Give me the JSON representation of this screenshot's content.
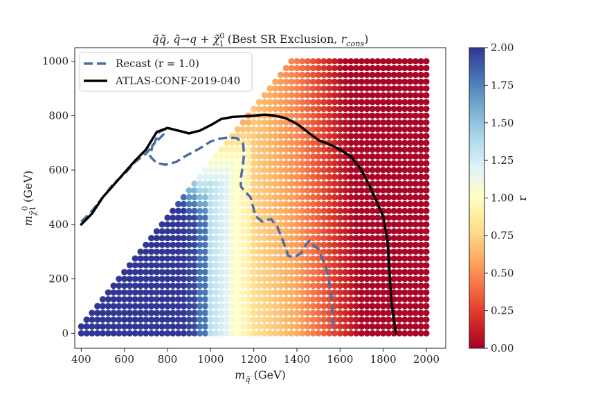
{
  "chart_data": {
    "type": "scatter",
    "title_parts": [
      {
        "t": "q̃q̃, q̃→q + χ̃",
        "style": "i"
      },
      {
        "t": "0",
        "style": "sup"
      },
      {
        "t": "1",
        "style": "sub"
      },
      {
        "t": " (Best SR Exclusion, ",
        "style": "n"
      },
      {
        "t": "r",
        "style": "i"
      },
      {
        "t": "cons",
        "style": "sub-i"
      },
      {
        "t": ")",
        "style": "n"
      }
    ],
    "xlabel_parts": [
      {
        "t": "m",
        "style": "i"
      },
      {
        "t": "q̃",
        "style": "sub-i"
      },
      {
        "t": " (GeV)",
        "style": "n"
      }
    ],
    "ylabel_parts": [
      {
        "t": "m",
        "style": "i"
      },
      {
        "t": "χ̃",
        "style": "sub-i"
      },
      {
        "t": "0",
        "style": "sup-s"
      },
      {
        "t": "1",
        "style": "sub-s"
      },
      {
        "t": " (GeV)",
        "style": "n"
      }
    ],
    "xlim": [
      370,
      2090
    ],
    "ylim": [
      -55,
      1050
    ],
    "x_ticks": [
      400,
      600,
      800,
      1000,
      1200,
      1400,
      1600,
      1800,
      2000
    ],
    "y_ticks": [
      0,
      200,
      400,
      600,
      800,
      1000
    ],
    "grid": {
      "x_min": 400,
      "x_max": 2000,
      "x_step": 25,
      "y_min": 0,
      "y_max": 1000,
      "y_step": 25
    },
    "colorbar": {
      "label": "r",
      "min": 0.0,
      "max": 2.0,
      "ticks": [
        "0.00",
        "0.25",
        "0.50",
        "0.75",
        "1.00",
        "1.25",
        "1.50",
        "1.75",
        "2.00"
      ],
      "colormap": [
        "#a50026",
        "#d73027",
        "#f46d43",
        "#fdae61",
        "#fee090",
        "#ffffbf",
        "#e0f3f8",
        "#abd9e9",
        "#74add1",
        "#4575b4",
        "#313695"
      ]
    },
    "legend": {
      "position": "upper-left",
      "entries": [
        {
          "label": "Recast (r = 1.0)",
          "style": "dashed",
          "color": "#4a6fa5"
        },
        {
          "label": "ATLAS-CONF-2019-040",
          "style": "solid",
          "color": "#000000"
        }
      ]
    },
    "series": [
      {
        "name": "Recast (r = 1.0)",
        "color": "#4a6fa5",
        "dash": true,
        "points": [
          [
            400,
            410
          ],
          [
            450,
            450
          ],
          [
            500,
            500
          ],
          [
            550,
            550
          ],
          [
            600,
            585
          ],
          [
            650,
            630
          ],
          [
            700,
            660
          ],
          [
            740,
            700
          ],
          [
            760,
            740
          ],
          [
            790,
            750
          ],
          [
            780,
            730
          ],
          [
            730,
            690
          ],
          [
            720,
            650
          ],
          [
            750,
            625
          ],
          [
            790,
            620
          ],
          [
            840,
            630
          ],
          [
            880,
            650
          ],
          [
            950,
            680
          ],
          [
            1000,
            705
          ],
          [
            1040,
            715
          ],
          [
            1080,
            720
          ],
          [
            1120,
            718
          ],
          [
            1150,
            700
          ],
          [
            1155,
            660
          ],
          [
            1150,
            620
          ],
          [
            1140,
            570
          ],
          [
            1140,
            540
          ],
          [
            1160,
            520
          ],
          [
            1185,
            500
          ],
          [
            1200,
            455
          ],
          [
            1210,
            430
          ],
          [
            1240,
            410
          ],
          [
            1280,
            420
          ],
          [
            1310,
            390
          ],
          [
            1340,
            330
          ],
          [
            1360,
            285
          ],
          [
            1380,
            280
          ],
          [
            1400,
            285
          ],
          [
            1420,
            295
          ],
          [
            1445,
            330
          ],
          [
            1460,
            340
          ],
          [
            1480,
            320
          ],
          [
            1500,
            310
          ],
          [
            1520,
            270
          ],
          [
            1540,
            230
          ],
          [
            1560,
            140
          ],
          [
            1565,
            60
          ],
          [
            1565,
            0
          ]
        ]
      },
      {
        "name": "ATLAS-CONF-2019-040",
        "color": "#000000",
        "dash": false,
        "points": [
          [
            400,
            400
          ],
          [
            450,
            440
          ],
          [
            500,
            500
          ],
          [
            550,
            545
          ],
          [
            600,
            590
          ],
          [
            650,
            635
          ],
          [
            700,
            675
          ],
          [
            750,
            740
          ],
          [
            800,
            755
          ],
          [
            850,
            745
          ],
          [
            900,
            735
          ],
          [
            950,
            745
          ],
          [
            1000,
            765
          ],
          [
            1050,
            788
          ],
          [
            1100,
            795
          ],
          [
            1150,
            798
          ],
          [
            1200,
            800
          ],
          [
            1250,
            803
          ],
          [
            1300,
            800
          ],
          [
            1350,
            790
          ],
          [
            1400,
            770
          ],
          [
            1450,
            740
          ],
          [
            1500,
            710
          ],
          [
            1550,
            695
          ],
          [
            1600,
            675
          ],
          [
            1650,
            650
          ],
          [
            1700,
            600
          ],
          [
            1750,
            520
          ],
          [
            1800,
            430
          ],
          [
            1820,
            340
          ],
          [
            1830,
            220
          ],
          [
            1840,
            100
          ],
          [
            1860,
            0
          ]
        ]
      }
    ]
  }
}
